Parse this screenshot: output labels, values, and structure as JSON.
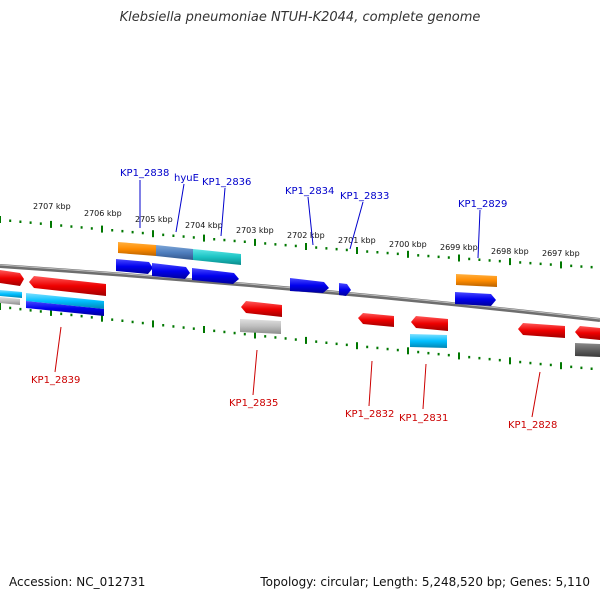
{
  "title": "Klebsiella pneumoniae NTUH-K2044, complete genome",
  "footer": {
    "accession": "Accession: NC_012731",
    "info": "Topology: circular; Length: 5,248,520 bp; Genes: 5,110"
  },
  "colors": {
    "forward_label": "#0000cc",
    "reverse_label": "#cc0000",
    "ticks": "#007700",
    "backbone": "#808080"
  },
  "scale_labels": [
    "2707 kbp",
    "2706 kbp",
    "2705 kbp",
    "2704 kbp",
    "2703 kbp",
    "2702 kbp",
    "2701 kbp",
    "2700 kbp",
    "2699 kbp",
    "2698 kbp",
    "2697 kbp"
  ],
  "forward_labels": [
    "KP1_2838",
    "hyuE",
    "KP1_2836",
    "KP1_2834",
    "KP1_2833",
    "KP1_2829"
  ],
  "reverse_labels": [
    "KP1_2839",
    "KP1_2835",
    "KP1_2832",
    "KP1_2831",
    "KP1_2828"
  ]
}
